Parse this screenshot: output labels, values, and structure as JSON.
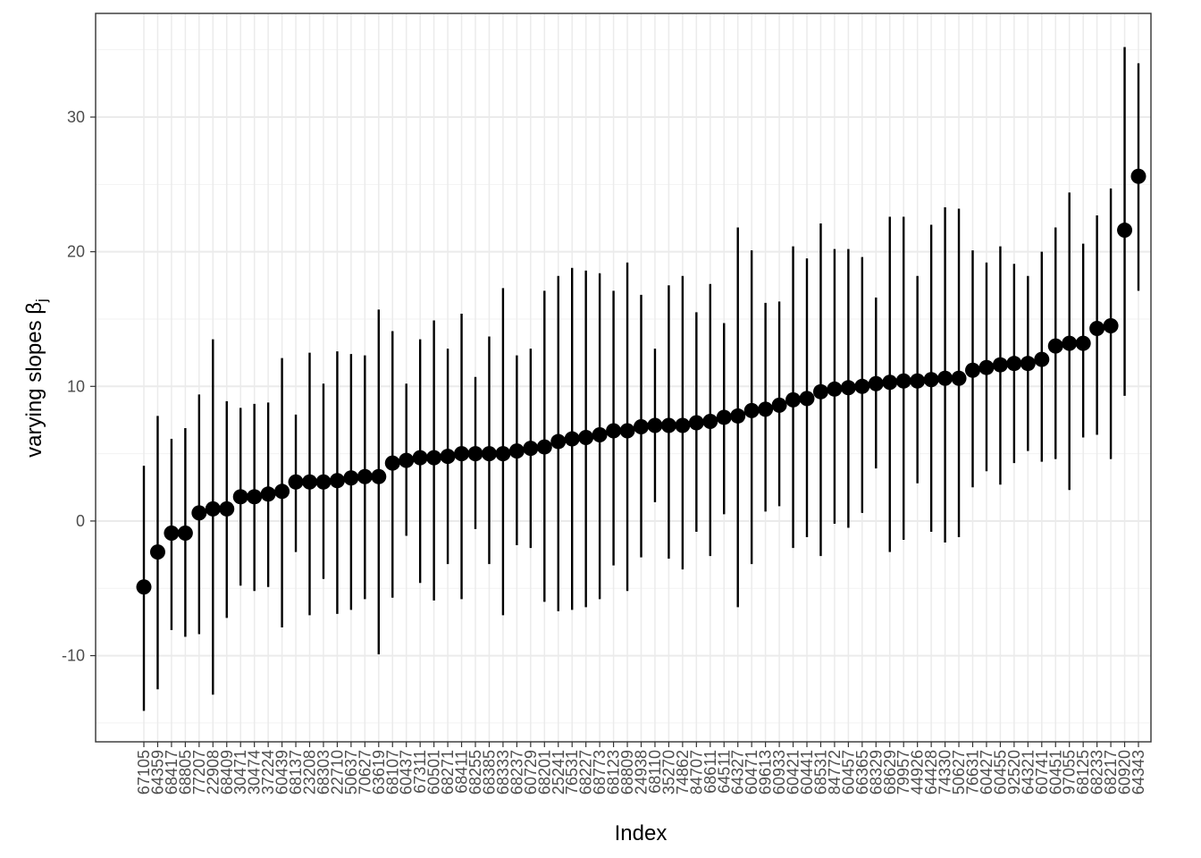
{
  "chart_data": {
    "type": "pointrange",
    "xlabel": "Index",
    "ylabel": "varying slopes β",
    "ylabel_subscript": "j",
    "categories": [
      "67105",
      "64359",
      "68417",
      "68805",
      "77207",
      "22908",
      "68409",
      "30471",
      "30474",
      "37224",
      "60439",
      "68137",
      "23208",
      "68303",
      "22710",
      "50637",
      "70627",
      "63619",
      "68107",
      "60437",
      "67311",
      "60501",
      "68271",
      "68411",
      "68255",
      "68385",
      "68333",
      "68237",
      "60729",
      "68201",
      "25241",
      "76531",
      "68227",
      "68773",
      "68123",
      "68809",
      "24938",
      "68110",
      "35270",
      "74862",
      "84707",
      "68611",
      "64511",
      "64327",
      "60471",
      "69613",
      "60933",
      "60421",
      "60441",
      "68531",
      "84772",
      "60457",
      "66365",
      "68329",
      "68629",
      "79957",
      "44926",
      "64428",
      "74330",
      "50627",
      "76631",
      "60427",
      "60455",
      "92520",
      "64321",
      "60741",
      "60451",
      "97055",
      "68125",
      "68233",
      "68217",
      "60920",
      "64343"
    ],
    "series": [
      {
        "color": "#000000",
        "values": [
          -4.9,
          -2.3,
          -0.9,
          -0.9,
          0.6,
          0.9,
          0.9,
          1.8,
          1.8,
          2.0,
          2.2,
          2.9,
          2.9,
          2.9,
          3.0,
          3.2,
          3.3,
          3.3,
          4.3,
          4.5,
          4.7,
          4.7,
          4.8,
          5.0,
          5.0,
          5.0,
          5.0,
          5.2,
          5.4,
          5.5,
          5.9,
          6.1,
          6.2,
          6.4,
          6.7,
          6.7,
          7.0,
          7.1,
          7.1,
          7.1,
          7.3,
          7.4,
          7.7,
          7.8,
          8.2,
          8.3,
          8.6,
          9.0,
          9.1,
          9.6,
          9.8,
          9.9,
          10.0,
          10.2,
          10.3,
          10.4,
          10.4,
          10.5,
          10.6,
          10.6,
          11.2,
          11.4,
          11.6,
          11.7,
          11.7,
          12.0,
          13.0,
          13.2,
          13.2,
          14.3,
          14.5,
          21.6,
          25.6
        ],
        "lower": [
          -14.1,
          -12.5,
          -8.1,
          -8.6,
          -8.4,
          -12.9,
          -7.2,
          -4.8,
          -5.2,
          -4.9,
          -7.9,
          -2.3,
          -7.0,
          -4.3,
          -6.9,
          -6.6,
          -5.8,
          -9.9,
          -5.7,
          -1.1,
          -4.6,
          -5.9,
          -3.2,
          -5.8,
          -0.6,
          -3.2,
          -7.0,
          -1.8,
          -2.0,
          -6.0,
          -6.7,
          -6.6,
          -6.4,
          -5.8,
          -3.3,
          -5.2,
          -2.7,
          1.4,
          -2.8,
          -3.6,
          -0.8,
          -2.6,
          0.5,
          -6.4,
          -3.2,
          0.7,
          1.1,
          -2.0,
          -1.2,
          -2.6,
          -0.2,
          -0.5,
          0.6,
          3.9,
          -2.3,
          -1.4,
          2.8,
          -0.8,
          -1.6,
          -1.2,
          2.5,
          3.7,
          2.7,
          4.3,
          5.2,
          4.4,
          4.6,
          2.3,
          6.2,
          6.4,
          4.6,
          9.3,
          17.1
        ],
        "upper": [
          4.1,
          7.8,
          6.1,
          6.9,
          9.4,
          13.5,
          8.9,
          8.4,
          8.7,
          8.8,
          12.1,
          7.9,
          12.5,
          10.2,
          12.6,
          12.4,
          12.3,
          15.7,
          14.1,
          10.2,
          13.5,
          14.9,
          12.8,
          15.4,
          10.7,
          13.7,
          17.3,
          12.3,
          12.8,
          17.1,
          18.2,
          18.8,
          18.6,
          18.4,
          17.1,
          19.2,
          16.8,
          12.8,
          17.5,
          18.2,
          15.5,
          17.6,
          14.7,
          21.8,
          20.1,
          16.2,
          16.3,
          20.4,
          19.5,
          22.1,
          20.2,
          20.2,
          19.6,
          16.6,
          22.6,
          22.6,
          18.2,
          22.0,
          23.3,
          23.2,
          20.1,
          19.2,
          20.4,
          19.1,
          18.2,
          20.0,
          21.8,
          24.4,
          20.6,
          22.7,
          24.7,
          35.2,
          34.0
        ]
      }
    ],
    "ylim": [
      -16.4,
      37.7
    ],
    "yticks": [
      -10,
      0,
      10,
      20,
      30
    ],
    "minor_yticks": [
      -15,
      -5,
      5,
      15,
      25,
      35
    ],
    "grid": true
  }
}
